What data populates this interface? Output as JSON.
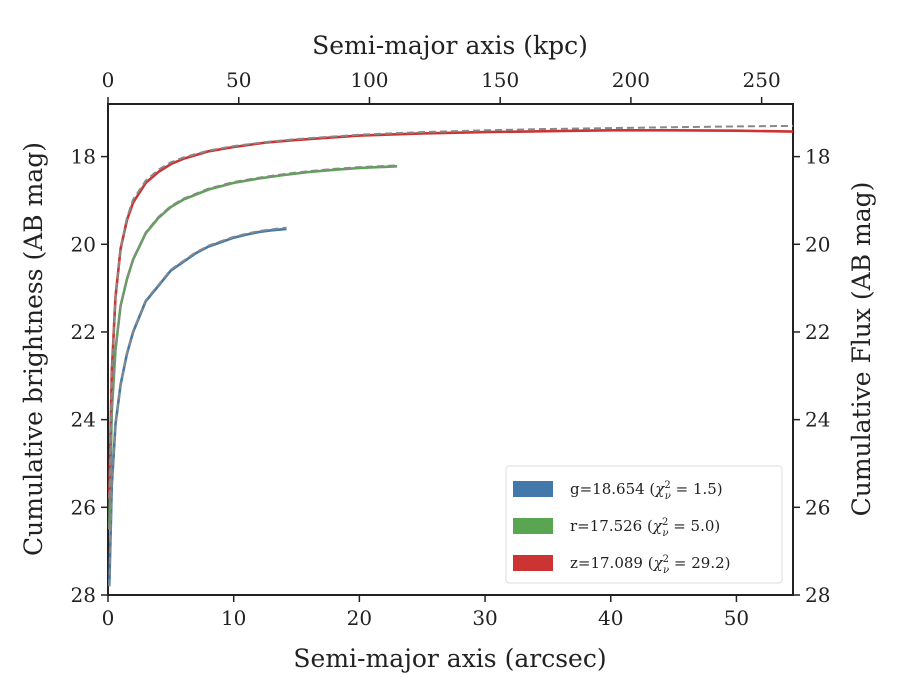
{
  "chart_data": {
    "type": "line",
    "xlabel": "Semi-major axis (arcsec)",
    "ylabel": "Cumulative brightness (AB mag)",
    "x2label": "Semi-major axis (kpc)",
    "y2label": "Cumulative Flux (AB mag)",
    "xlim": [
      0,
      54.5
    ],
    "ylim": [
      28,
      16.8
    ],
    "x2lim": [
      0,
      262
    ],
    "y_inverted": true,
    "xticks": [
      "0",
      "10",
      "20",
      "30",
      "40",
      "50"
    ],
    "yticks": [
      "18",
      "20",
      "22",
      "24",
      "26",
      "28"
    ],
    "x2ticks": [
      "0",
      "50",
      "100",
      "150",
      "200",
      "250"
    ],
    "legend_position": "lower-right",
    "series": [
      {
        "name": "g",
        "legend_label": "g=18.654",
        "chi2": "1.5",
        "color": "#4278aa",
        "x": [
          0.1,
          0.3,
          0.6,
          1.0,
          1.5,
          2.0,
          3.0,
          4.0,
          5.0,
          6.0,
          7.0,
          8.0,
          9.0,
          10.0,
          11.0,
          12.0,
          13.0,
          14.2
        ],
        "y": [
          27.8,
          25.5,
          24.1,
          23.2,
          22.5,
          22.0,
          21.3,
          20.95,
          20.6,
          20.4,
          20.2,
          20.05,
          19.95,
          19.85,
          19.78,
          19.72,
          19.68,
          19.65
        ]
      },
      {
        "name": "r",
        "legend_label": "r=17.526",
        "chi2": "5.0",
        "color": "#5aa552",
        "x": [
          0.1,
          0.3,
          0.6,
          1.0,
          1.5,
          2.0,
          3.0,
          4.0,
          5.0,
          6.0,
          8.0,
          10.0,
          12.0,
          14.0,
          16.0,
          18.0,
          20.0,
          23.0
        ],
        "y": [
          26.5,
          23.8,
          22.4,
          21.4,
          20.8,
          20.35,
          19.75,
          19.4,
          19.15,
          18.98,
          18.75,
          18.6,
          18.5,
          18.42,
          18.35,
          18.3,
          18.26,
          18.22
        ]
      },
      {
        "name": "z",
        "legend_label": "z=17.089",
        "chi2": "29.2",
        "color": "#cc3333",
        "x": [
          0.1,
          0.3,
          0.6,
          1.0,
          1.5,
          2.0,
          3.0,
          4.0,
          5.0,
          6.0,
          8.0,
          10.0,
          12.5,
          15.0,
          20.0,
          25.0,
          30.0,
          35.0,
          40.0,
          45.0,
          50.0,
          54.5
        ],
        "y": [
          25.8,
          22.9,
          21.2,
          20.1,
          19.45,
          19.05,
          18.6,
          18.35,
          18.17,
          18.05,
          17.88,
          17.78,
          17.68,
          17.62,
          17.52,
          17.47,
          17.44,
          17.42,
          17.4,
          17.4,
          17.41,
          17.43
        ]
      }
    ],
    "model_fits": {
      "color": "#888888",
      "style": "dashed",
      "series": [
        {
          "name": "g-model",
          "x": [
            0.1,
            0.3,
            0.6,
            1.0,
            1.5,
            2.0,
            3.0,
            4.0,
            5.0,
            6.0,
            7.0,
            8.0,
            9.0,
            10.0,
            11.0,
            12.0,
            13.0,
            14.2
          ],
          "y": [
            27.8,
            25.5,
            24.1,
            23.2,
            22.48,
            21.98,
            21.28,
            20.93,
            20.58,
            20.38,
            20.18,
            20.03,
            19.93,
            19.83,
            19.76,
            19.7,
            19.66,
            19.62
          ]
        },
        {
          "name": "r-model",
          "x": [
            0.1,
            0.3,
            0.6,
            1.0,
            1.5,
            2.0,
            3.0,
            4.0,
            5.0,
            6.0,
            8.0,
            10.0,
            12.0,
            14.0,
            16.0,
            18.0,
            20.0,
            23.0
          ],
          "y": [
            26.5,
            23.8,
            22.4,
            21.4,
            20.78,
            20.33,
            19.73,
            19.38,
            19.13,
            18.96,
            18.73,
            18.58,
            18.48,
            18.4,
            18.33,
            18.28,
            18.24,
            18.2
          ]
        },
        {
          "name": "z-model",
          "x": [
            0.1,
            0.3,
            0.6,
            1.0,
            1.5,
            2.0,
            3.0,
            4.0,
            5.0,
            6.0,
            8.0,
            10.0,
            12.5,
            15.0,
            20.0,
            25.0,
            30.0,
            35.0,
            40.0,
            45.0,
            50.0,
            54.5
          ],
          "y": [
            25.8,
            22.9,
            21.2,
            20.1,
            19.4,
            18.98,
            18.55,
            18.3,
            18.13,
            18.02,
            17.86,
            17.76,
            17.67,
            17.6,
            17.5,
            17.44,
            17.4,
            17.37,
            17.35,
            17.33,
            17.31,
            17.3
          ]
        }
      ]
    }
  }
}
